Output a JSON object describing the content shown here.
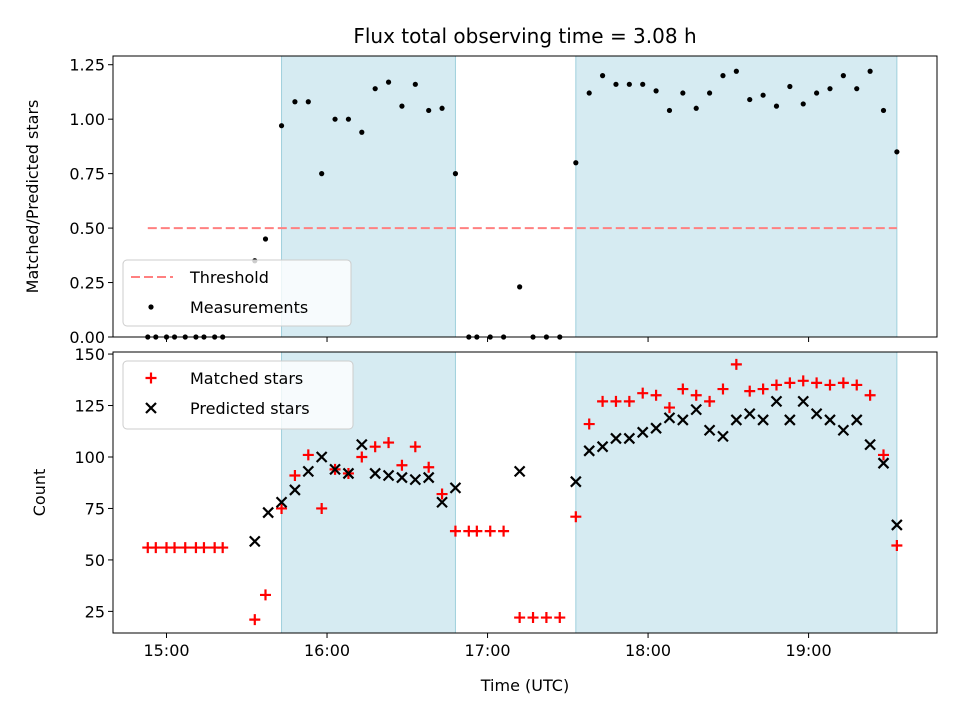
{
  "chart_data": [
    {
      "type": "scatter",
      "title": "Flux total observing time = 3.08 h",
      "ylabel": "Matched/Predicted stars",
      "xlabel": "",
      "xlim": [
        "14:40",
        "19:48"
      ],
      "ylim": [
        0,
        1.29
      ],
      "yticks": [
        0.0,
        0.25,
        0.5,
        0.75,
        1.0,
        1.25
      ],
      "ytick_labels": [
        "0.00",
        "0.25",
        "0.50",
        "0.75",
        "1.00",
        "1.25"
      ],
      "xticks": [
        "15:00",
        "16:00",
        "17:00",
        "18:00",
        "19:00"
      ],
      "grid": false,
      "legend_position": "lower-left",
      "shaded_intervals": [
        [
          "15:43",
          "16:48"
        ],
        [
          "17:33",
          "19:33"
        ]
      ],
      "shade_color": "#add8e6",
      "threshold": {
        "name": "Threshold",
        "y": 0.5,
        "x_range": [
          "14:53",
          "19:33"
        ],
        "color": "#ff8080"
      },
      "series": [
        {
          "name": "Measurements",
          "marker": "dot",
          "color": "#000000",
          "points": [
            [
              "14:53",
              0.0
            ],
            [
              "14:56",
              0.0
            ],
            [
              "15:00",
              0.0
            ],
            [
              "15:03",
              0.0
            ],
            [
              "15:07",
              0.0
            ],
            [
              "15:11",
              0.0
            ],
            [
              "15:14",
              0.0
            ],
            [
              "15:18",
              0.0
            ],
            [
              "15:21",
              0.0
            ],
            [
              "15:33",
              0.35
            ],
            [
              "15:37",
              0.45
            ],
            [
              "15:43",
              0.97
            ],
            [
              "15:48",
              1.08
            ],
            [
              "15:53",
              1.08
            ],
            [
              "15:58",
              0.75
            ],
            [
              "16:03",
              1.0
            ],
            [
              "16:08",
              1.0
            ],
            [
              "16:13",
              0.94
            ],
            [
              "16:18",
              1.14
            ],
            [
              "16:23",
              1.17
            ],
            [
              "16:28",
              1.06
            ],
            [
              "16:33",
              1.16
            ],
            [
              "16:38",
              1.04
            ],
            [
              "16:43",
              1.05
            ],
            [
              "16:48",
              0.75
            ],
            [
              "16:53",
              0.0
            ],
            [
              "16:56",
              0.0
            ],
            [
              "17:01",
              0.0
            ],
            [
              "17:06",
              0.0
            ],
            [
              "17:12",
              0.23
            ],
            [
              "17:17",
              0.0
            ],
            [
              "17:22",
              0.0
            ],
            [
              "17:27",
              0.0
            ],
            [
              "17:33",
              0.8
            ],
            [
              "17:38",
              1.12
            ],
            [
              "17:43",
              1.2
            ],
            [
              "17:48",
              1.16
            ],
            [
              "17:53",
              1.16
            ],
            [
              "17:58",
              1.16
            ],
            [
              "18:03",
              1.13
            ],
            [
              "18:08",
              1.04
            ],
            [
              "18:13",
              1.12
            ],
            [
              "18:18",
              1.05
            ],
            [
              "18:23",
              1.12
            ],
            [
              "18:28",
              1.2
            ],
            [
              "18:33",
              1.22
            ],
            [
              "18:38",
              1.09
            ],
            [
              "18:43",
              1.11
            ],
            [
              "18:48",
              1.06
            ],
            [
              "18:53",
              1.15
            ],
            [
              "18:58",
              1.07
            ],
            [
              "19:03",
              1.12
            ],
            [
              "19:08",
              1.14
            ],
            [
              "19:13",
              1.2
            ],
            [
              "19:18",
              1.14
            ],
            [
              "19:23",
              1.22
            ],
            [
              "19:28",
              1.04
            ],
            [
              "19:33",
              0.85
            ]
          ]
        }
      ]
    },
    {
      "type": "scatter",
      "title": "",
      "ylabel": "Count",
      "xlabel": "Time (UTC)",
      "xlim": [
        "14:40",
        "19:48"
      ],
      "ylim": [
        14.5,
        151
      ],
      "yticks": [
        25,
        50,
        75,
        100,
        125,
        150
      ],
      "ytick_labels": [
        "25",
        "50",
        "75",
        "100",
        "125",
        "150"
      ],
      "xticks": [
        "15:00",
        "16:00",
        "17:00",
        "18:00",
        "19:00"
      ],
      "grid": false,
      "legend_position": "upper-left",
      "shaded_intervals": [
        [
          "15:43",
          "16:48"
        ],
        [
          "17:33",
          "19:33"
        ]
      ],
      "shade_color": "#add8e6",
      "series": [
        {
          "name": "Matched stars",
          "marker": "plus",
          "color": "#ff0000",
          "points": [
            [
              "14:53",
              56
            ],
            [
              "14:56",
              56
            ],
            [
              "15:00",
              56
            ],
            [
              "15:03",
              56
            ],
            [
              "15:07",
              56
            ],
            [
              "15:11",
              56
            ],
            [
              "15:14",
              56
            ],
            [
              "15:18",
              56
            ],
            [
              "15:21",
              56
            ],
            [
              "15:33",
              21
            ],
            [
              "15:37",
              33
            ],
            [
              "15:43",
              75
            ],
            [
              "15:48",
              91
            ],
            [
              "15:53",
              101
            ],
            [
              "15:58",
              75
            ],
            [
              "16:03",
              94
            ],
            [
              "16:08",
              92
            ],
            [
              "16:13",
              100
            ],
            [
              "16:18",
              105
            ],
            [
              "16:23",
              107
            ],
            [
              "16:28",
              96
            ],
            [
              "16:33",
              105
            ],
            [
              "16:38",
              95
            ],
            [
              "16:43",
              82
            ],
            [
              "16:48",
              64
            ],
            [
              "16:53",
              64
            ],
            [
              "16:56",
              64
            ],
            [
              "17:01",
              64
            ],
            [
              "17:06",
              64
            ],
            [
              "17:12",
              22
            ],
            [
              "17:17",
              22
            ],
            [
              "17:22",
              22
            ],
            [
              "17:27",
              22
            ],
            [
              "17:33",
              71
            ],
            [
              "17:38",
              116
            ],
            [
              "17:43",
              127
            ],
            [
              "17:48",
              127
            ],
            [
              "17:53",
              127
            ],
            [
              "17:58",
              131
            ],
            [
              "18:03",
              130
            ],
            [
              "18:08",
              124
            ],
            [
              "18:13",
              133
            ],
            [
              "18:18",
              130
            ],
            [
              "18:23",
              127
            ],
            [
              "18:28",
              133
            ],
            [
              "18:33",
              145
            ],
            [
              "18:38",
              132
            ],
            [
              "18:43",
              133
            ],
            [
              "18:48",
              135
            ],
            [
              "18:53",
              136
            ],
            [
              "18:58",
              137
            ],
            [
              "19:03",
              136
            ],
            [
              "19:08",
              135
            ],
            [
              "19:13",
              136
            ],
            [
              "19:18",
              135
            ],
            [
              "19:23",
              130
            ],
            [
              "19:28",
              101
            ],
            [
              "19:33",
              57
            ]
          ]
        },
        {
          "name": "Predicted stars",
          "marker": "x",
          "color": "#000000",
          "points": [
            [
              "15:33",
              59
            ],
            [
              "15:38",
              73
            ],
            [
              "15:43",
              78
            ],
            [
              "15:48",
              84
            ],
            [
              "15:53",
              93
            ],
            [
              "15:58",
              100
            ],
            [
              "16:03",
              94
            ],
            [
              "16:08",
              92
            ],
            [
              "16:13",
              106
            ],
            [
              "16:18",
              92
            ],
            [
              "16:23",
              91
            ],
            [
              "16:28",
              90
            ],
            [
              "16:33",
              89
            ],
            [
              "16:38",
              90
            ],
            [
              "16:43",
              78
            ],
            [
              "16:48",
              85
            ],
            [
              "17:12",
              93
            ],
            [
              "17:33",
              88
            ],
            [
              "17:38",
              103
            ],
            [
              "17:43",
              105
            ],
            [
              "17:48",
              109
            ],
            [
              "17:53",
              109
            ],
            [
              "17:58",
              112
            ],
            [
              "18:03",
              114
            ],
            [
              "18:08",
              119
            ],
            [
              "18:13",
              118
            ],
            [
              "18:18",
              123
            ],
            [
              "18:23",
              113
            ],
            [
              "18:28",
              110
            ],
            [
              "18:33",
              118
            ],
            [
              "18:38",
              121
            ],
            [
              "18:43",
              118
            ],
            [
              "18:48",
              127
            ],
            [
              "18:53",
              118
            ],
            [
              "18:58",
              127
            ],
            [
              "19:03",
              121
            ],
            [
              "19:08",
              118
            ],
            [
              "19:13",
              113
            ],
            [
              "19:18",
              118
            ],
            [
              "19:23",
              106
            ],
            [
              "19:28",
              97
            ],
            [
              "19:33",
              67
            ]
          ]
        }
      ]
    }
  ]
}
